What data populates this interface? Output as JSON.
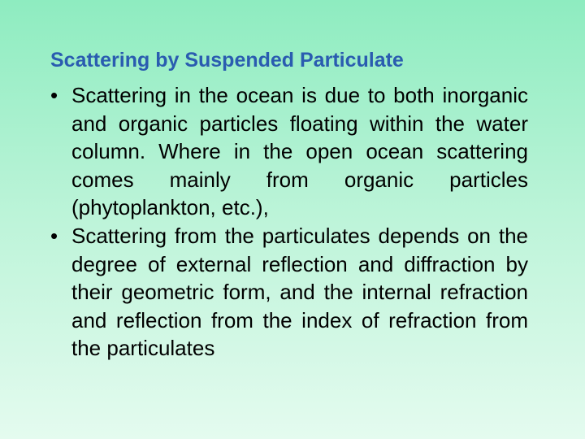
{
  "title": "Scattering by Suspended Particulate",
  "bullets": [
    "Scattering in the ocean is due to both inorganic and organic particles floating within the water column. Where in the open ocean scattering comes mainly from organic particles (phytoplankton, etc.),",
    "Scattering from the particulates depends on the degree of external reflection and diffraction by their geometric form, and the internal refraction and reflection from the index of refraction from the particulates"
  ]
}
